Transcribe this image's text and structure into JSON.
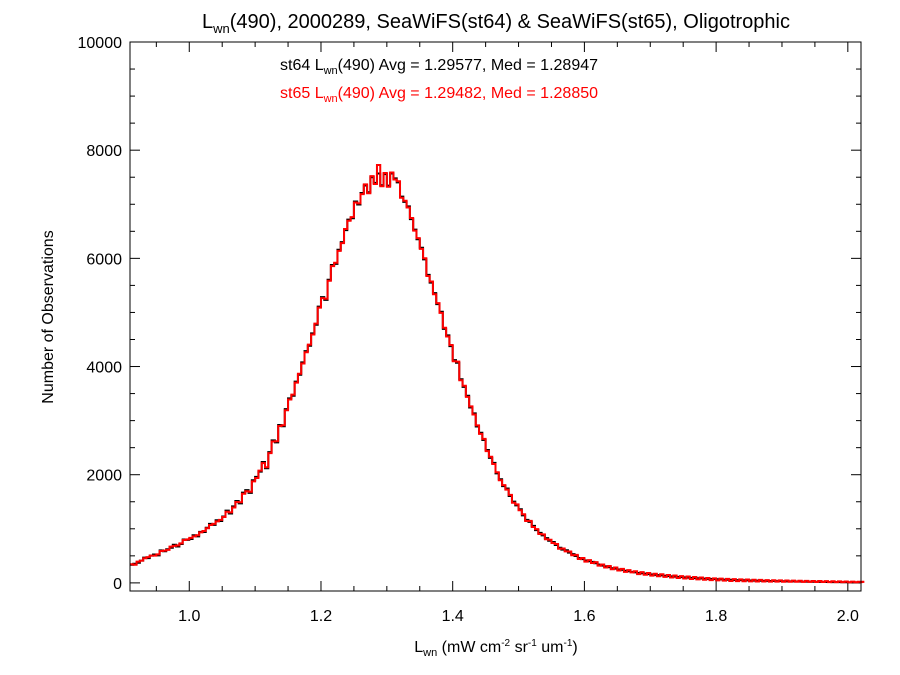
{
  "chart_data": {
    "type": "line",
    "step": true,
    "title": {
      "pre": "L",
      "sub": "wn",
      "post": "(490), 2000289, SeaWiFS(st64) & SeaWiFS(st65), Oligotrophic"
    },
    "xlabel": {
      "pre": "L",
      "sub": "wn",
      "mid1": " (mW cm",
      "sup1": "-2",
      "mid2": " sr",
      "sup2": "-1",
      "mid3": " um",
      "sup3": "-1",
      "post": ")"
    },
    "ylabel": "Number of Observations",
    "xlim": [
      0.91,
      2.02
    ],
    "ylim": [
      -150,
      10000
    ],
    "xticks": [
      1.0,
      1.2,
      1.4,
      1.6,
      1.8,
      2.0
    ],
    "xtick_labels": [
      "1.0",
      "1.2",
      "1.4",
      "1.6",
      "1.8",
      "2.0"
    ],
    "yticks": [
      0,
      2000,
      4000,
      6000,
      8000,
      10000
    ],
    "ytick_labels": [
      "0",
      "2000",
      "4000",
      "6000",
      "8000",
      "10000"
    ],
    "bin_start": 0.91,
    "bin_width": 0.005,
    "series": [
      {
        "name": "st64",
        "color": "#000000",
        "values": [
          335,
          355,
          373,
          411,
          466,
          457,
          503,
          525,
          508,
          600,
          586,
          621,
          650,
          705,
          673,
          720,
          802,
          795,
          812,
          880,
          860,
          944,
          940,
          1020,
          1090,
          1072,
          1157,
          1144,
          1228,
          1335,
          1283,
          1414,
          1515,
          1470,
          1668,
          1715,
          1665,
          1897,
          1960,
          2056,
          2234,
          2119,
          2418,
          2634,
          2598,
          2920,
          2895,
          3212,
          3411,
          3460,
          3722,
          3847,
          4077,
          4285,
          4385,
          4612,
          4773,
          5108,
          5284,
          5232,
          5605,
          5877,
          5898,
          6159,
          6301,
          6523,
          6716,
          6742,
          7052,
          6996,
          7208,
          7348,
          7223,
          7500,
          7395,
          7569,
          7352,
          7557,
          7345,
          7568,
          7479,
          7405,
          7141,
          7045,
          6961,
          6726,
          6532,
          6353,
          6195,
          5982,
          5694,
          5551,
          5357,
          5153,
          5013,
          4696,
          4575,
          4378,
          4118,
          4071,
          3766,
          3624,
          3460,
          3243,
          3134,
          2892,
          2776,
          2642,
          2457,
          2312,
          2219,
          2025,
          1917,
          1788,
          1745,
          1607,
          1502,
          1432,
          1362,
          1248,
          1164,
          1127,
          1054,
          975,
          925,
          878,
          827,
          778,
          757,
          700,
          650,
          616,
          603,
          560,
          531,
          497,
          461,
          440,
          414,
          400,
          388,
          364,
          340,
          320,
          305,
          292,
          271,
          264,
          248,
          240,
          224,
          215,
          204,
          194,
          183,
          178,
          171,
          162,
          154,
          149,
          143,
          139,
          132,
          126,
          120,
          116,
          111,
          106,
          101,
          98,
          93,
          89,
          85,
          80,
          78,
          75,
          72,
          70,
          67,
          64,
          61,
          58,
          56,
          54,
          52,
          50,
          48,
          46,
          44,
          42,
          41,
          40,
          38,
          37,
          35,
          34,
          33,
          32,
          30,
          29,
          28,
          27,
          26,
          25,
          24,
          23,
          22,
          21,
          20,
          19,
          18,
          17,
          16,
          15,
          14,
          13,
          12,
          11,
          10,
          10,
          9,
          9
        ]
      },
      {
        "name": "st65",
        "color": "#ff0000",
        "values": [
          345,
          335,
          393,
          411,
          456,
          477,
          503,
          505,
          528,
          590,
          596,
          611,
          670,
          685,
          693,
          730,
          792,
          805,
          832,
          860,
          880,
          934,
          960,
          1010,
          1070,
          1092,
          1137,
          1164,
          1218,
          1315,
          1303,
          1394,
          1495,
          1490,
          1648,
          1695,
          1685,
          1877,
          1940,
          2076,
          2214,
          2139,
          2398,
          2614,
          2618,
          2900,
          2915,
          3192,
          3391,
          3480,
          3702,
          3867,
          4057,
          4265,
          4405,
          4592,
          4793,
          5088,
          5264,
          5252,
          5585,
          5857,
          5918,
          6139,
          6281,
          6543,
          6696,
          6762,
          7032,
          7016,
          7188,
          7368,
          7203,
          7520,
          7375,
          7725,
          7332,
          7577,
          7325,
          7588,
          7459,
          7425,
          7121,
          7065,
          6941,
          6746,
          6512,
          6373,
          6175,
          6002,
          5674,
          5571,
          5337,
          5173,
          4993,
          4716,
          4555,
          4398,
          4098,
          4091,
          3746,
          3644,
          3440,
          3263,
          3114,
          2912,
          2756,
          2662,
          2437,
          2332,
          2199,
          2045,
          1897,
          1808,
          1725,
          1627,
          1482,
          1452,
          1342,
          1268,
          1144,
          1147,
          1034,
          995,
          905,
          898,
          807,
          798,
          737,
          720,
          630,
          636,
          583,
          580,
          511,
          517,
          441,
          460,
          394,
          420,
          368,
          384,
          320,
          340,
          285,
          312,
          251,
          284,
          228,
          260,
          204,
          235,
          195,
          214,
          163,
          198,
          151,
          182,
          134,
          169,
          123,
          159,
          112,
          146,
          100,
          136,
          91,
          126,
          81,
          118,
          73,
          109,
          65,
          100,
          58,
          90,
          52,
          84,
          47,
          78,
          41,
          74,
          36,
          70,
          32,
          66,
          30,
          62,
          28,
          58,
          26,
          55,
          25,
          52,
          24,
          49,
          23,
          46,
          22,
          44,
          21,
          42,
          20,
          40,
          19,
          38,
          18,
          36,
          17,
          34,
          16,
          32,
          15,
          30,
          14,
          28,
          13,
          26,
          12,
          24,
          11,
          22,
          10,
          20
        ]
      }
    ],
    "annotations": [
      {
        "color": "#000000",
        "pre": "st64 L",
        "sub": "wn",
        "post": "(490) Avg = 1.29577, Med = 1.28947"
      },
      {
        "color": "#ff0000",
        "pre": "st65 L",
        "sub": "wn",
        "post": "(490) Avg = 1.29482, Med = 1.28850"
      }
    ]
  }
}
